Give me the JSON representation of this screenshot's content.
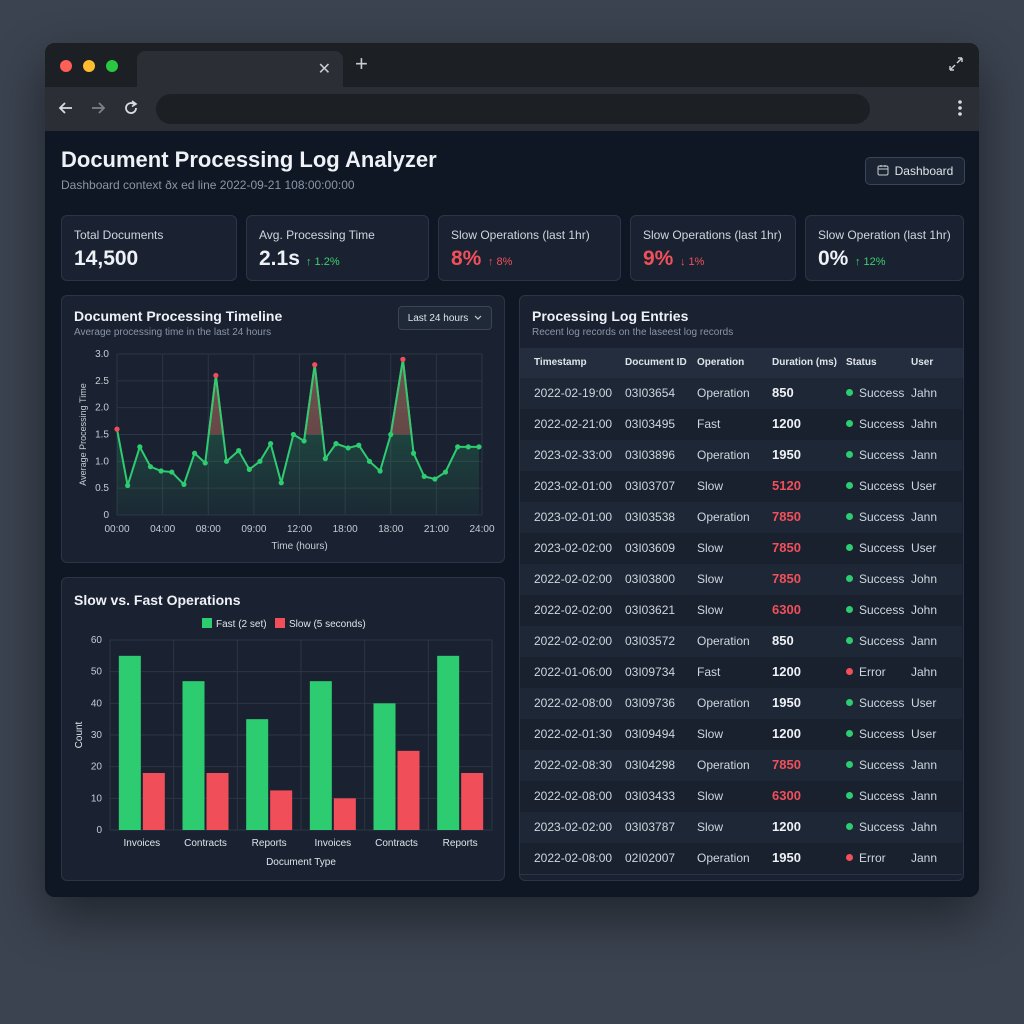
{
  "browser": {
    "tab_title": "",
    "url": ""
  },
  "header": {
    "title": "Document Processing Log Analyzer",
    "subtitle": "Dashboard context ðx ed line 2022-09-21 108:00:00:00",
    "dashboard_button": "Dashboard"
  },
  "kpis": [
    {
      "label": "Total Documents",
      "value": "14,500",
      "delta": "",
      "value_color": "#eef1f5",
      "delta_color": "#3ccf6e"
    },
    {
      "label": "Avg. Processing Time",
      "value": "2.1s",
      "delta": "↑ 1.2%",
      "value_color": "#eef1f5",
      "delta_color": "#3ccf6e"
    },
    {
      "label": "Slow Operations (last 1hr)",
      "value": "8%",
      "delta": "↑ 8%",
      "value_color": "#f0505a",
      "delta_color": "#f0505a"
    },
    {
      "label": "Slow Operations (last 1hr)",
      "value": "9%",
      "delta": "↓ 1%",
      "value_color": "#f0505a",
      "delta_color": "#f0505a"
    },
    {
      "label": "Slow Operation (last 1hr)",
      "value": "0%",
      "delta": "↑ 12%",
      "value_color": "#eef1f5",
      "delta_color": "#3ccf6e"
    }
  ],
  "timeline_panel": {
    "title": "Document Processing Timeline",
    "subtitle": "Average processing time in the last 24 hours",
    "range_select": "Last 24 hours"
  },
  "bar_panel": {
    "title": "Slow vs. Fast Operations"
  },
  "chart_data": [
    {
      "type": "line",
      "xlabel": "Time (hours)",
      "ylabel": "Average Processing Time",
      "x_ticks": [
        "00:00",
        "04:00",
        "08:00",
        "09:00",
        "12:00",
        "18:00",
        "18:00",
        "21:00",
        "24:00"
      ],
      "y_ticks": [
        "0",
        "0.5",
        "1.0",
        "1.5",
        "2.0",
        "2.5",
        "3.0"
      ],
      "ylim": [
        0,
        3
      ],
      "xlim": [
        0,
        24
      ],
      "grid": true,
      "threshold": 1.5,
      "series": [
        {
          "x": [
            0,
            0.7,
            1.5,
            2.2,
            2.9,
            3.6,
            4.4,
            5.1,
            5.8,
            6.5,
            7.2,
            8.0,
            8.7,
            9.4,
            10.1,
            10.8,
            11.6,
            12.3,
            13.0,
            13.7,
            14.4,
            15.2,
            15.9,
            16.6,
            17.3,
            18.0,
            18.8,
            19.5,
            20.2,
            20.9,
            21.6,
            22.4,
            23.1,
            23.8
          ],
          "y": [
            1.6,
            0.55,
            1.27,
            0.9,
            0.82,
            0.8,
            0.57,
            1.15,
            0.97,
            2.6,
            1.0,
            1.2,
            0.85,
            1.0,
            1.33,
            0.6,
            1.5,
            1.38,
            2.8,
            1.05,
            1.33,
            1.25,
            1.3,
            1.0,
            0.82,
            1.5,
            2.9,
            1.15,
            0.72,
            0.67,
            0.8,
            1.27,
            1.27,
            1.27
          ]
        }
      ]
    },
    {
      "type": "bar",
      "categories": [
        "Invoices",
        "Contracts",
        "Reports",
        "Invoices",
        "Contracts",
        "Reports"
      ],
      "xlabel": "Document Type",
      "ylabel": "Count",
      "ylim": [
        0,
        60
      ],
      "y_ticks": [
        "0",
        "10",
        "20",
        "30",
        "40",
        "50",
        "60"
      ],
      "legend_position": "top-center",
      "grid": true,
      "series": [
        {
          "name": "Fast (2 set)",
          "color": "#2ecc71",
          "values": [
            55,
            47,
            35,
            47,
            40,
            55
          ]
        },
        {
          "name": "Slow (5 seconds)",
          "color": "#f04e58",
          "values": [
            18,
            18,
            12.5,
            10,
            25,
            18
          ]
        }
      ]
    }
  ],
  "log_panel": {
    "title": "Processing Log Entries",
    "subtitle": "Recent log records on the laseest log records",
    "columns": [
      "Timestamp",
      "Document ID",
      "Operation",
      "Duration (ms)",
      "Status",
      "User"
    ],
    "rows": [
      {
        "ts": "2022-02-19:00",
        "id": "03I03654",
        "op": "Operation",
        "dur": "850",
        "slow": false,
        "status": "Success",
        "user": "Jahn"
      },
      {
        "ts": "2022-02-21:00",
        "id": "03I03495",
        "op": "Fast",
        "dur": "1200",
        "slow": false,
        "status": "Success",
        "user": "Jahn"
      },
      {
        "ts": "2023-02-33:00",
        "id": "03I03896",
        "op": "Operation",
        "dur": "1950",
        "slow": false,
        "status": "Success",
        "user": "Jann"
      },
      {
        "ts": "2023-02-01:00",
        "id": "03I03707",
        "op": "Slow",
        "dur": "5120",
        "slow": true,
        "status": "Success",
        "user": "User"
      },
      {
        "ts": "2023-02-01:00",
        "id": "03I03538",
        "op": "Operation",
        "dur": "7850",
        "slow": true,
        "status": "Success",
        "user": "Jann"
      },
      {
        "ts": "2023-02-02:00",
        "id": "03I03609",
        "op": "Slow",
        "dur": "7850",
        "slow": true,
        "status": "Success",
        "user": "User"
      },
      {
        "ts": "2022-02-02:00",
        "id": "03I03800",
        "op": "Slow",
        "dur": "7850",
        "slow": true,
        "status": "Success",
        "user": "John"
      },
      {
        "ts": "2022-02-02:00",
        "id": "03I03621",
        "op": "Slow",
        "dur": "6300",
        "slow": true,
        "status": "Success",
        "user": "John"
      },
      {
        "ts": "2022-02-02:00",
        "id": "03I03572",
        "op": "Operation",
        "dur": "850",
        "slow": false,
        "status": "Success",
        "user": "Jann"
      },
      {
        "ts": "2022-01-06:00",
        "id": "03I09734",
        "op": "Fast",
        "dur": "1200",
        "slow": false,
        "status": "Error",
        "user": "Jahn"
      },
      {
        "ts": "2022-02-08:00",
        "id": "03I09736",
        "op": "Operation",
        "dur": "1950",
        "slow": false,
        "status": "Success",
        "user": "User"
      },
      {
        "ts": "2022-02-01:30",
        "id": "03I09494",
        "op": "Slow",
        "dur": "1200",
        "slow": false,
        "status": "Success",
        "user": "User"
      },
      {
        "ts": "2022-02-08:30",
        "id": "03I04298",
        "op": "Operation",
        "dur": "7850",
        "slow": true,
        "status": "Success",
        "user": "Jann"
      },
      {
        "ts": "2022-02-08:00",
        "id": "03I03433",
        "op": "Slow",
        "dur": "6300",
        "slow": true,
        "status": "Success",
        "user": "Jann"
      },
      {
        "ts": "2023-02-02:00",
        "id": "03I03787",
        "op": "Slow",
        "dur": "1200",
        "slow": false,
        "status": "Success",
        "user": "Jahn"
      },
      {
        "ts": "2022-02-08:00",
        "id": "02I02007",
        "op": "Operation",
        "dur": "1950",
        "slow": false,
        "status": "Error",
        "user": "Jann"
      }
    ]
  },
  "colors": {
    "success": "#2ecc71",
    "error": "#f0505a",
    "slow_duration": "#f0505a",
    "accent_green": "#2ecc71",
    "accent_red": "#f04e58"
  },
  "icons": {
    "close": "close-icon",
    "new_tab": "plus-icon",
    "back": "arrow-left-icon",
    "forward": "arrow-right-icon",
    "reload": "reload-icon",
    "menu": "kebab-menu-icon",
    "calendar": "calendar-icon",
    "expand": "expand-icon",
    "chevron": "chevron-down-icon"
  }
}
